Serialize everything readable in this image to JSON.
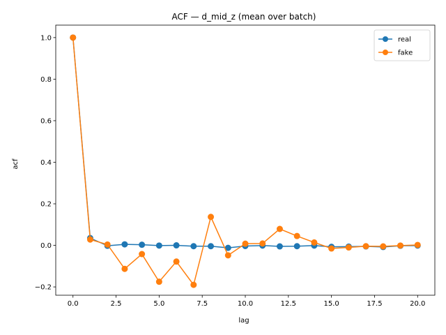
{
  "chart_data": {
    "type": "line",
    "title": "ACF — d_mid_z (mean over batch)",
    "xlabel": "lag",
    "ylabel": "acf",
    "xlim": [
      -1,
      21
    ],
    "ylim": [
      -0.24,
      1.06
    ],
    "xticks": [
      0,
      2.5,
      5,
      7.5,
      10,
      12.5,
      15,
      17.5,
      20
    ],
    "xtick_labels": [
      "0.0",
      "2.5",
      "5.0",
      "7.5",
      "10.0",
      "12.5",
      "15.0",
      "17.5",
      "20.0"
    ],
    "yticks": [
      -0.2,
      0,
      0.2,
      0.4,
      0.6,
      0.8,
      1.0
    ],
    "ytick_labels": [
      "−0.2",
      "0.0",
      "0.2",
      "0.4",
      "0.6",
      "0.8",
      "1.0"
    ],
    "grid": false,
    "legend": "top-right",
    "x": [
      0,
      1,
      2,
      3,
      4,
      5,
      6,
      7,
      8,
      9,
      10,
      11,
      12,
      13,
      14,
      15,
      16,
      17,
      18,
      19,
      20
    ],
    "series": [
      {
        "name": "real",
        "color": "#1f77b4",
        "values": [
          1.0,
          0.035,
          -0.002,
          0.005,
          0.003,
          -0.001,
          0.0,
          -0.004,
          -0.004,
          -0.012,
          -0.003,
          -0.001,
          -0.005,
          -0.004,
          -0.001,
          -0.007,
          -0.006,
          -0.005,
          -0.008,
          -0.002,
          -0.001
        ]
      },
      {
        "name": "fake",
        "color": "#ff7f0e",
        "values": [
          1.0,
          0.028,
          0.004,
          -0.113,
          -0.042,
          -0.175,
          -0.078,
          -0.19,
          0.137,
          -0.048,
          0.008,
          0.009,
          0.079,
          0.045,
          0.014,
          -0.015,
          -0.01,
          -0.004,
          -0.005,
          -0.001,
          0.002
        ]
      }
    ]
  }
}
